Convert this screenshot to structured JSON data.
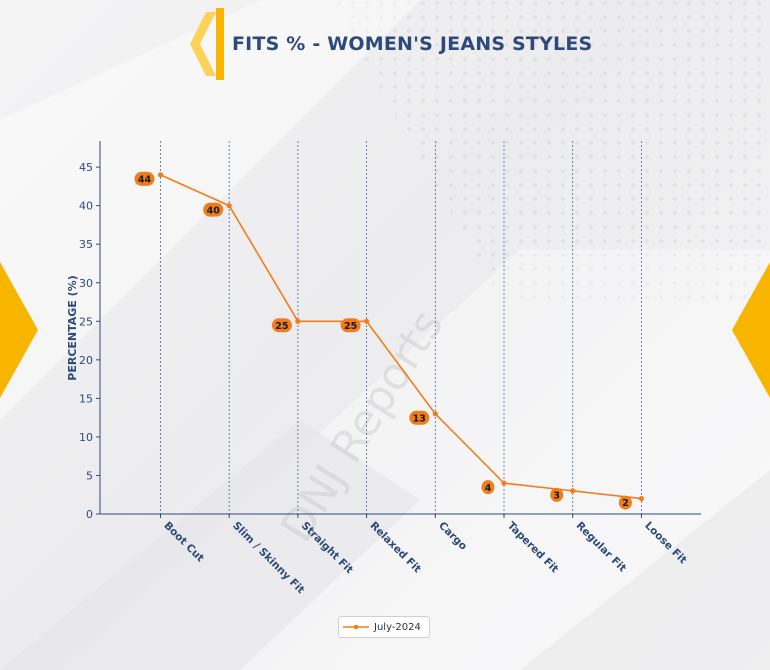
{
  "header": {
    "title": "FITS % - WOMEN'S JEANS STYLES"
  },
  "brand": {
    "accent": "#f7b500",
    "accent_light": "#fbd35a",
    "title_color": "#2d4a7a"
  },
  "watermark": "DNJ Reports",
  "chart_data": {
    "type": "line",
    "title": "",
    "xlabel": "",
    "ylabel": "PERCENTAGE (%)",
    "categories": [
      "Boot Cut",
      "Slim / Skinny Fit",
      "Straight Fit",
      "Relaxed Fit",
      "Cargo",
      "Tapered Fit",
      "Regular Fit",
      "Loose Fit"
    ],
    "series": [
      {
        "name": "July-2024",
        "values": [
          44,
          40,
          25,
          25,
          13,
          4,
          3,
          2
        ],
        "color": "#f07d1a"
      }
    ],
    "ylim": [
      0,
      48
    ],
    "yticks": [
      0,
      5,
      10,
      15,
      20,
      25,
      30,
      35,
      40,
      45
    ],
    "grid": "vertical dashed at categories",
    "legend": "bottom-center"
  }
}
